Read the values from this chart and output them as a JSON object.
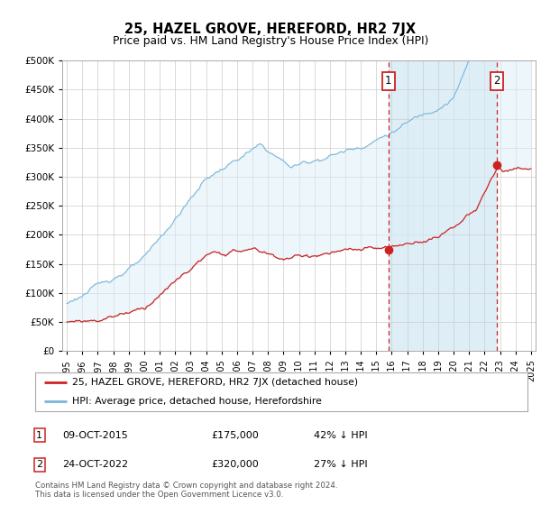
{
  "title": "25, HAZEL GROVE, HEREFORD, HR2 7JX",
  "subtitle": "Price paid vs. HM Land Registry's House Price Index (HPI)",
  "legend_label1": "25, HAZEL GROVE, HEREFORD, HR2 7JX (detached house)",
  "legend_label2": "HPI: Average price, detached house, Herefordshire",
  "annotation1_label": "1",
  "annotation1_date": "09-OCT-2015",
  "annotation1_price": "£175,000",
  "annotation1_hpi": "42% ↓ HPI",
  "annotation1_year": 2015.78,
  "annotation1_value": 175000,
  "annotation2_label": "2",
  "annotation2_date": "24-OCT-2022",
  "annotation2_price": "£320,000",
  "annotation2_hpi": "27% ↓ HPI",
  "annotation2_year": 2022.81,
  "annotation2_value": 320000,
  "copyright": "Contains HM Land Registry data © Crown copyright and database right 2024.\nThis data is licensed under the Open Government Licence v3.0.",
  "hpi_color": "#7ab5d8",
  "hpi_fill_color": "#ddeef7",
  "price_color": "#cc2222",
  "vline_color": "#cc2222",
  "background_color": "#ffffff",
  "grid_color": "#cccccc",
  "ylim": [
    0,
    500000
  ],
  "xlim_start": 1994.7,
  "xlim_end": 2025.3
}
